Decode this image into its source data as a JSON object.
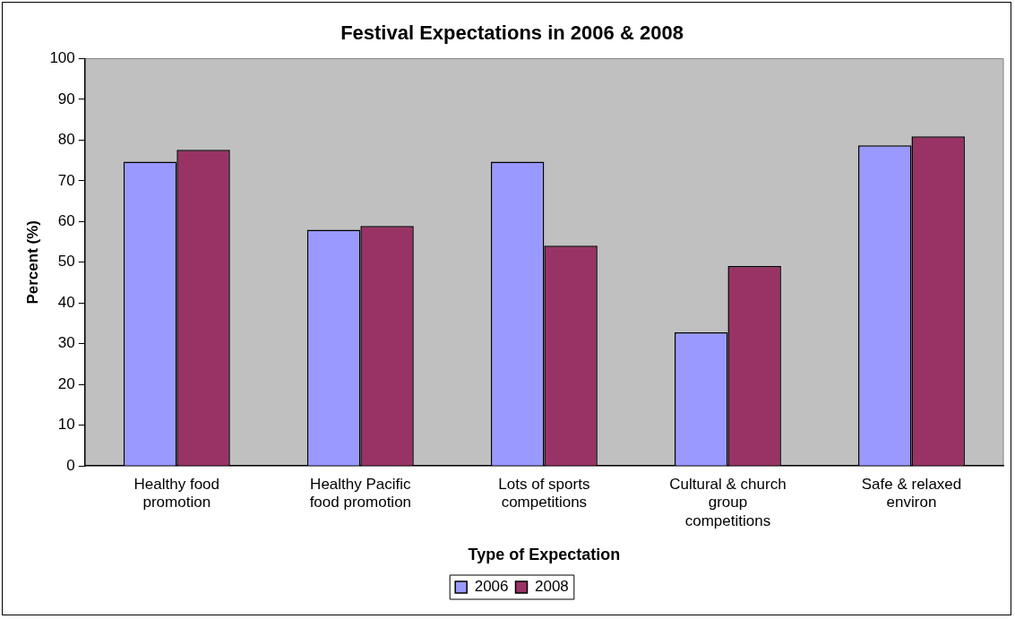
{
  "chart_data": {
    "type": "bar",
    "title": "Festival Expectations in 2006 & 2008",
    "xlabel": "Type of Expectation",
    "ylabel": "Percent (%)",
    "categories": [
      "Healthy food promotion",
      "Healthy Pacific food promotion",
      "Lots of sports competitions",
      "Cultural & church group competitions",
      "Safe & relaxed environ"
    ],
    "series": [
      {
        "name": "2006",
        "color": "#9999ff",
        "values": [
          74.7,
          58,
          74.7,
          32.8,
          78.7
        ]
      },
      {
        "name": "2008",
        "color": "#993366",
        "values": [
          77.6,
          58.9,
          54.1,
          49.1,
          80.9
        ]
      }
    ],
    "ylim": [
      0,
      100
    ],
    "yticks": [
      0,
      10,
      20,
      30,
      40,
      50,
      60,
      70,
      80,
      90,
      100
    ],
    "grid": false,
    "legend": "bottom"
  }
}
